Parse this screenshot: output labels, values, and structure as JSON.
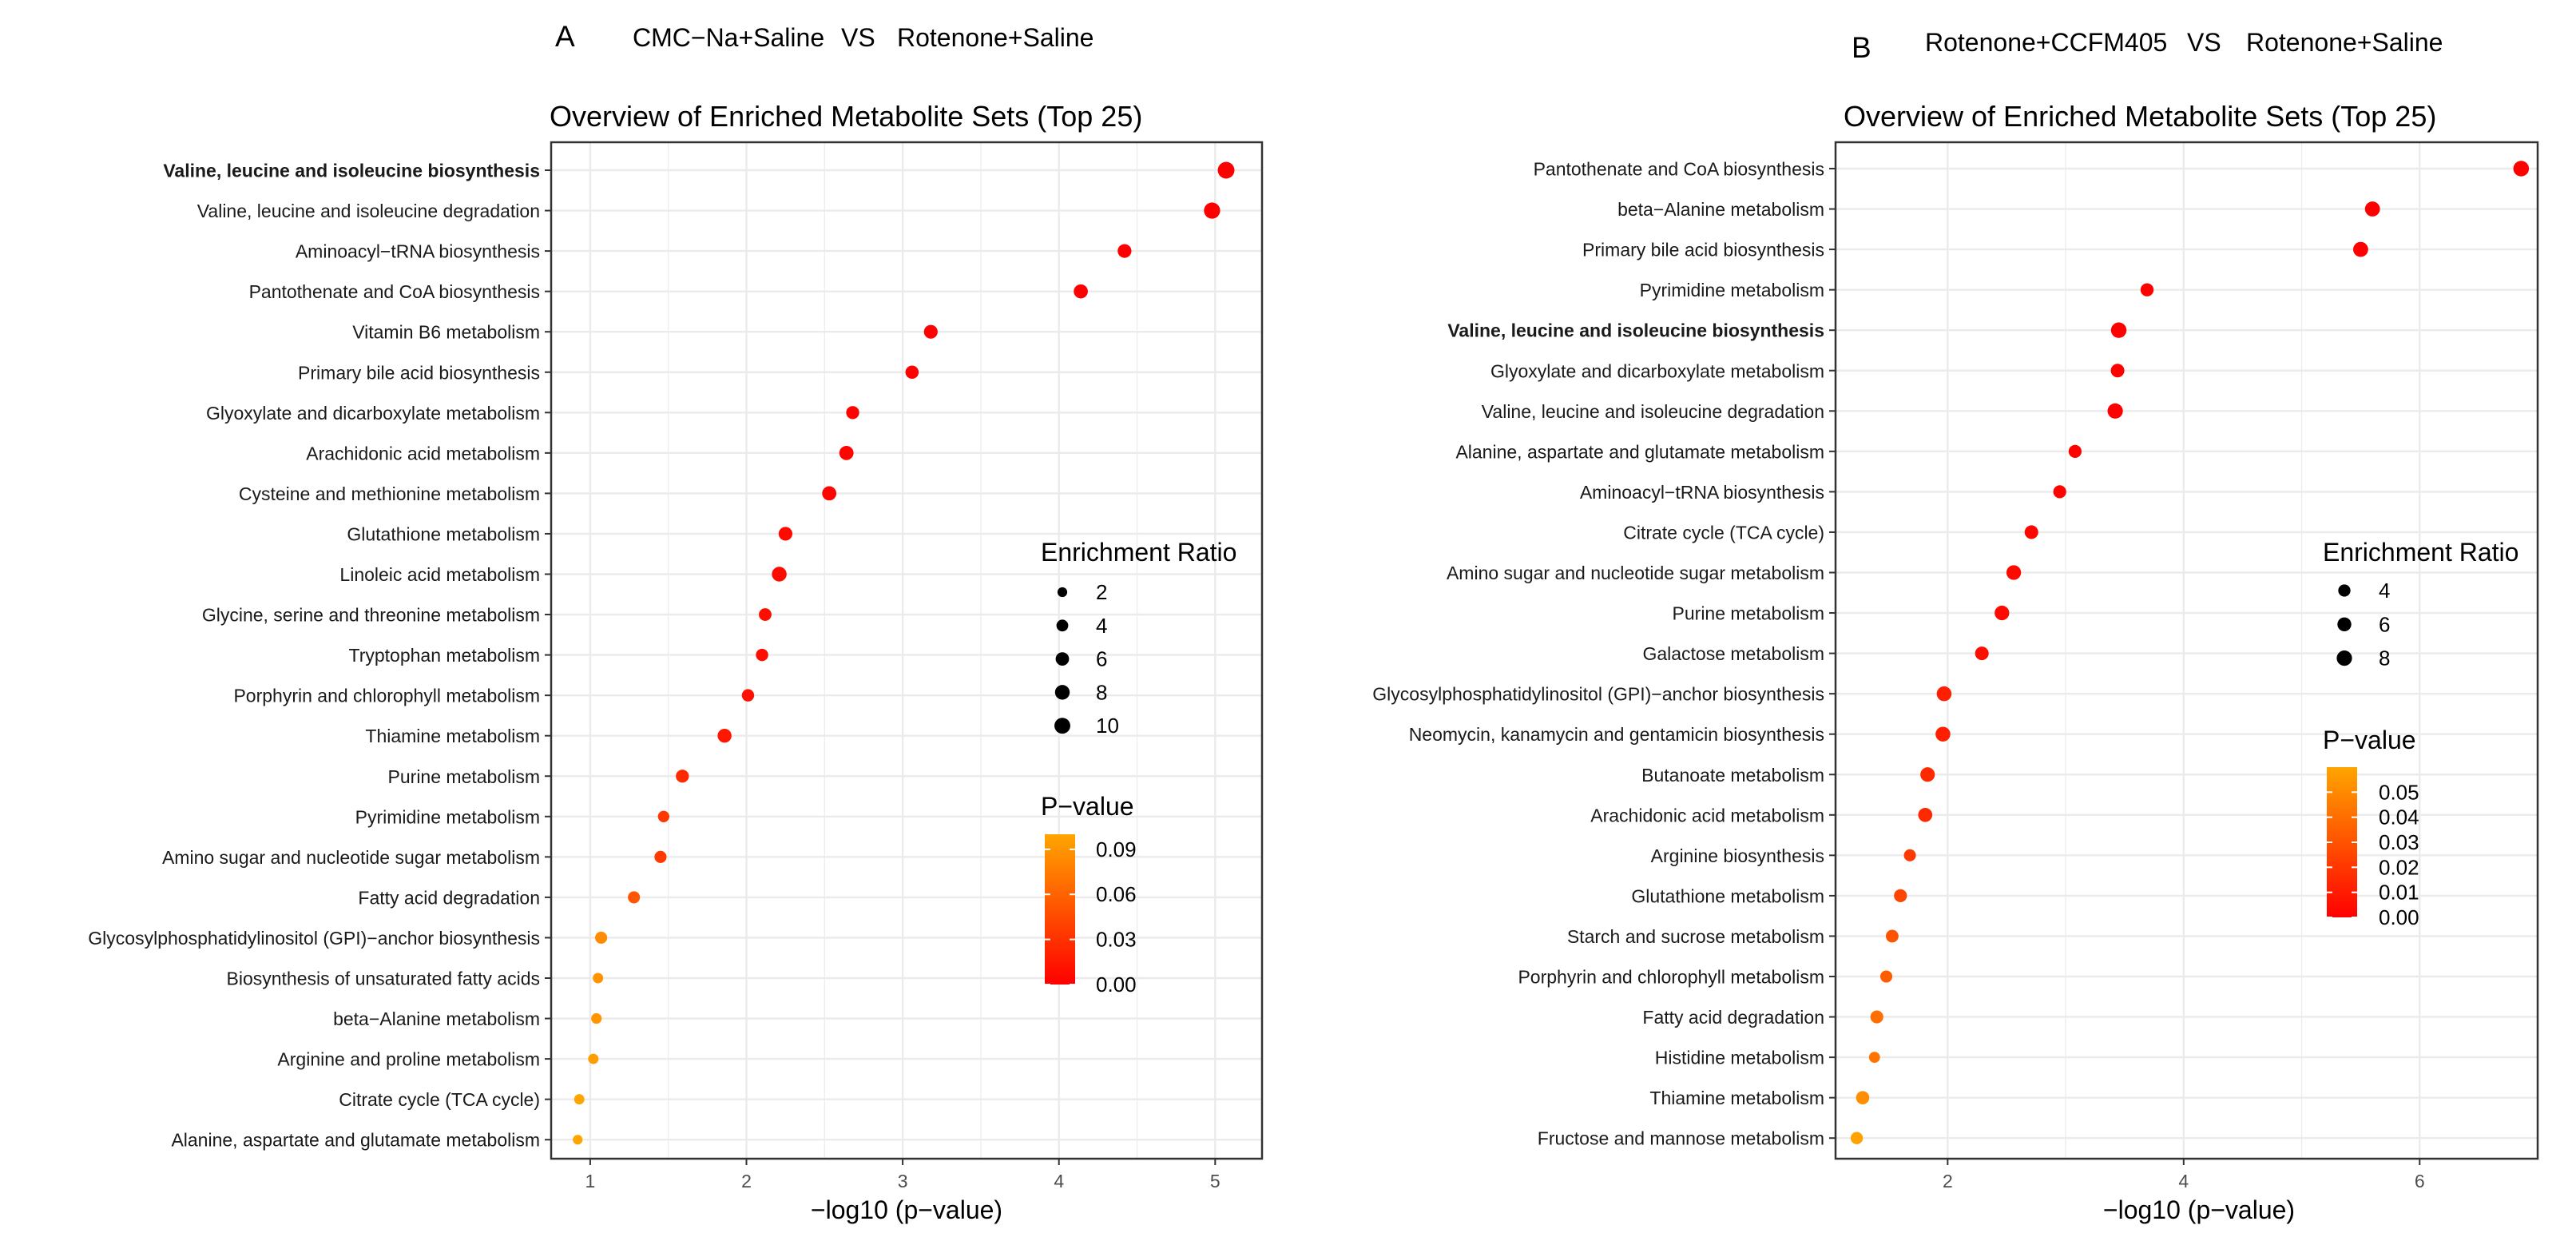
{
  "panels": [
    {
      "letter": "A",
      "group_a": "CMC−Na+Saline",
      "vs": "VS",
      "group_b": "Rotenone+Saline"
    },
    {
      "letter": "B",
      "group_a": "Rotenone+CCFM405",
      "vs": "VS",
      "group_b": "Rotenone+Saline"
    }
  ],
  "colors": {
    "low_p": "#FF0000",
    "high_p": "#FFA500",
    "grid": "#EBEBEB",
    "border": "#333333"
  },
  "chart_data": [
    {
      "type": "scatter",
      "title": "Overview of Enriched Metabolite Sets (Top 25)",
      "xlabel": "−log10 (p−value)",
      "ylabel": "",
      "xlim": [
        0.75,
        5.3
      ],
      "xticks": [
        1,
        2,
        3,
        4,
        5
      ],
      "highlight": "Valine, leucine and isoleucine biosynthesis",
      "size_legend": {
        "title": "Enrichment Ratio",
        "values": [
          2,
          4,
          6,
          8,
          10
        ]
      },
      "color_legend": {
        "title": "P−value",
        "range": [
          0,
          0.1
        ],
        "ticks": [
          0.09,
          0.06,
          0.03,
          0.0
        ],
        "tick_labels": [
          "0.09",
          "0.06",
          "0.03",
          "0.00"
        ]
      },
      "points": [
        {
          "label": "Valine, leucine and isoleucine biosynthesis",
          "x": 5.07,
          "ratio": 11.5,
          "p": 1e-05
        },
        {
          "label": "Valine, leucine and isoleucine degradation",
          "x": 4.98,
          "ratio": 10.5,
          "p": 1e-05
        },
        {
          "label": "Aminoacyl−tRNA biosynthesis",
          "x": 4.42,
          "ratio": 6.5,
          "p": 4e-05
        },
        {
          "label": "Pantothenate and CoA biosynthesis",
          "x": 4.14,
          "ratio": 7.0,
          "p": 7e-05
        },
        {
          "label": "Vitamin B6 metabolism",
          "x": 3.18,
          "ratio": 6.5,
          "p": 0.0007
        },
        {
          "label": "Primary bile acid biosynthesis",
          "x": 3.06,
          "ratio": 5.8,
          "p": 0.0009
        },
        {
          "label": "Glyoxylate and dicarboxylate metabolism",
          "x": 2.68,
          "ratio": 5.5,
          "p": 0.002
        },
        {
          "label": "Arachidonic acid metabolism",
          "x": 2.64,
          "ratio": 7.2,
          "p": 0.0023
        },
        {
          "label": "Cysteine and methionine metabolism",
          "x": 2.53,
          "ratio": 7.2,
          "p": 0.003
        },
        {
          "label": "Glutathione metabolism",
          "x": 2.25,
          "ratio": 6.5,
          "p": 0.0056
        },
        {
          "label": "Linoleic acid metabolism",
          "x": 2.21,
          "ratio": 8.0,
          "p": 0.0062
        },
        {
          "label": "Glycine, serine and threonine metabolism",
          "x": 2.12,
          "ratio": 5.0,
          "p": 0.0076
        },
        {
          "label": "Tryptophan metabolism",
          "x": 2.1,
          "ratio": 4.6,
          "p": 0.008
        },
        {
          "label": "Porphyrin and chlorophyll metabolism",
          "x": 2.01,
          "ratio": 4.6,
          "p": 0.0098
        },
        {
          "label": "Thiamine metabolism",
          "x": 1.86,
          "ratio": 6.8,
          "p": 0.014
        },
        {
          "label": "Purine metabolism",
          "x": 1.59,
          "ratio": 5.5,
          "p": 0.026
        },
        {
          "label": "Pyrimidine metabolism",
          "x": 1.47,
          "ratio": 3.6,
          "p": 0.034
        },
        {
          "label": "Amino sugar and nucleotide sugar metabolism",
          "x": 1.45,
          "ratio": 4.3,
          "p": 0.035
        },
        {
          "label": "Fatty acid degradation",
          "x": 1.28,
          "ratio": 4.3,
          "p": 0.052
        },
        {
          "label": "Glycosylphosphatidylinositol (GPI)−anchor biosynthesis",
          "x": 1.07,
          "ratio": 4.3,
          "p": 0.085
        },
        {
          "label": "Biosynthesis of unsaturated fatty acids",
          "x": 1.05,
          "ratio": 2.5,
          "p": 0.089
        },
        {
          "label": "beta−Alanine metabolism",
          "x": 1.04,
          "ratio": 2.7,
          "p": 0.091
        },
        {
          "label": "Arginine and proline metabolism",
          "x": 1.02,
          "ratio": 2.5,
          "p": 0.095
        },
        {
          "label": "Citrate cycle (TCA cycle)",
          "x": 0.93,
          "ratio": 2.5,
          "p": 0.117
        },
        {
          "label": "Alanine, aspartate and glutamate metabolism",
          "x": 0.92,
          "ratio": 2.0,
          "p": 0.12
        }
      ]
    },
    {
      "type": "scatter",
      "title": "Overview of Enriched Metabolite Sets (Top 25)",
      "xlabel": "−log10 (p−value)",
      "ylabel": "",
      "xlim": [
        1.05,
        7.0
      ],
      "xticks": [
        2,
        4,
        6
      ],
      "highlight": "Valine, leucine and isoleucine biosynthesis",
      "size_legend": {
        "title": "Enrichment Ratio",
        "values": [
          4,
          6,
          8
        ]
      },
      "color_legend": {
        "title": "P−value",
        "range": [
          0,
          0.06
        ],
        "ticks": [
          0.05,
          0.04,
          0.03,
          0.02,
          0.01,
          0.0
        ],
        "tick_labels": [
          "0.05",
          "0.04",
          "0.03",
          "0.02",
          "0.01",
          "0.00"
        ]
      },
      "points": [
        {
          "label": "Pantothenate and CoA biosynthesis",
          "x": 6.86,
          "ratio": 8.5,
          "p": 1e-07
        },
        {
          "label": "beta−Alanine metabolism",
          "x": 5.6,
          "ratio": 7.5,
          "p": 2.5e-06
        },
        {
          "label": "Primary bile acid biosynthesis",
          "x": 5.5,
          "ratio": 7.5,
          "p": 3e-06
        },
        {
          "label": "Pyrimidine metabolism",
          "x": 3.69,
          "ratio": 5.0,
          "p": 0.0002
        },
        {
          "label": "Valine, leucine and isoleucine biosynthesis",
          "x": 3.45,
          "ratio": 8.3,
          "p": 0.00035
        },
        {
          "label": "Glyoxylate and dicarboxylate metabolism",
          "x": 3.44,
          "ratio": 5.6,
          "p": 0.00036
        },
        {
          "label": "Valine, leucine and isoleucine degradation",
          "x": 3.42,
          "ratio": 8.0,
          "p": 0.00038
        },
        {
          "label": "Alanine, aspartate and glutamate metabolism",
          "x": 3.08,
          "ratio": 4.8,
          "p": 0.00083
        },
        {
          "label": "Aminoacyl−tRNA biosynthesis",
          "x": 2.95,
          "ratio": 4.8,
          "p": 0.0011
        },
        {
          "label": "Citrate cycle (TCA cycle)",
          "x": 2.71,
          "ratio": 5.6,
          "p": 0.0019
        },
        {
          "label": "Amino sugar and nucleotide sugar metabolism",
          "x": 2.56,
          "ratio": 7.0,
          "p": 0.0028
        },
        {
          "label": "Purine metabolism",
          "x": 2.46,
          "ratio": 7.0,
          "p": 0.0035
        },
        {
          "label": "Galactose metabolism",
          "x": 2.29,
          "ratio": 5.6,
          "p": 0.0051
        },
        {
          "label": "Glycosylphosphatidylinositol (GPI)−anchor biosynthesis",
          "x": 1.97,
          "ratio": 7.2,
          "p": 0.011
        },
        {
          "label": "Neomycin, kanamycin and gentamicin biosynthesis",
          "x": 1.96,
          "ratio": 7.2,
          "p": 0.011
        },
        {
          "label": "Butanoate metabolism",
          "x": 1.83,
          "ratio": 6.8,
          "p": 0.015
        },
        {
          "label": "Arachidonic acid metabolism",
          "x": 1.81,
          "ratio": 6.3,
          "p": 0.015
        },
        {
          "label": "Arginine biosynthesis",
          "x": 1.68,
          "ratio": 3.8,
          "p": 0.021
        },
        {
          "label": "Glutathione metabolism",
          "x": 1.6,
          "ratio": 4.8,
          "p": 0.025
        },
        {
          "label": "Starch and sucrose metabolism",
          "x": 1.53,
          "ratio": 4.5,
          "p": 0.03
        },
        {
          "label": "Porphyrin and chlorophyll metabolism",
          "x": 1.48,
          "ratio": 3.8,
          "p": 0.033
        },
        {
          "label": "Fatty acid degradation",
          "x": 1.4,
          "ratio": 4.8,
          "p": 0.04
        },
        {
          "label": "Histidine metabolism",
          "x": 1.38,
          "ratio": 2.8,
          "p": 0.042
        },
        {
          "label": "Thiamine metabolism",
          "x": 1.28,
          "ratio": 5.2,
          "p": 0.052
        },
        {
          "label": "Fructose and mannose metabolism",
          "x": 1.23,
          "ratio": 4.0,
          "p": 0.059
        }
      ]
    }
  ]
}
